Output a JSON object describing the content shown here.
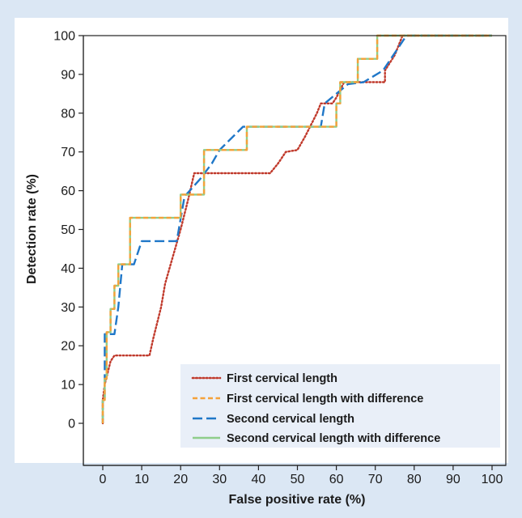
{
  "chart_data": {
    "type": "line",
    "title": "",
    "xlabel": "False positive rate (%)",
    "ylabel": "Detection rate (%)",
    "xlim": [
      0,
      100
    ],
    "ylim": [
      0,
      100
    ],
    "x_ticks": [
      0,
      10,
      20,
      30,
      40,
      50,
      60,
      70,
      80,
      90,
      100
    ],
    "y_ticks": [
      0,
      10,
      20,
      30,
      40,
      50,
      60,
      70,
      80,
      90,
      100
    ],
    "grid": false,
    "legend_position": "bottom-right",
    "series": [
      {
        "name": "First cervical length",
        "color": "#c0392b",
        "dash": "dotted",
        "points": [
          [
            0,
            0
          ],
          [
            0,
            6
          ],
          [
            0.5,
            10
          ],
          [
            1,
            12
          ],
          [
            2,
            16
          ],
          [
            3,
            17.5
          ],
          [
            12,
            17.5
          ],
          [
            13,
            22
          ],
          [
            15,
            30
          ],
          [
            16,
            36
          ],
          [
            18,
            43
          ],
          [
            20,
            50
          ],
          [
            22,
            58
          ],
          [
            23.5,
            64.5
          ],
          [
            43,
            64.5
          ],
          [
            45,
            67
          ],
          [
            47,
            70
          ],
          [
            50,
            70.5
          ],
          [
            52,
            74
          ],
          [
            55,
            80
          ],
          [
            56,
            82.5
          ],
          [
            59,
            82.5
          ],
          [
            60,
            84
          ],
          [
            61,
            86
          ],
          [
            62,
            88
          ],
          [
            72.5,
            88
          ],
          [
            72.5,
            91
          ],
          [
            75,
            95
          ],
          [
            77,
            100
          ],
          [
            100,
            100
          ]
        ]
      },
      {
        "name": "First cervical length with difference",
        "color": "#f5a13a",
        "dash": "dashed-short",
        "points": [
          [
            0,
            0
          ],
          [
            0,
            6
          ],
          [
            0.5,
            6
          ],
          [
            0.5,
            11.5
          ],
          [
            1,
            11.5
          ],
          [
            1,
            23.5
          ],
          [
            2,
            23.5
          ],
          [
            2,
            29.5
          ],
          [
            3,
            29.5
          ],
          [
            3,
            35.5
          ],
          [
            4,
            35.5
          ],
          [
            4,
            41
          ],
          [
            7,
            41
          ],
          [
            7,
            53
          ],
          [
            20,
            53
          ],
          [
            20,
            59
          ],
          [
            26,
            59
          ],
          [
            26,
            70.5
          ],
          [
            37,
            70.5
          ],
          [
            37,
            76.5
          ],
          [
            60,
            76.5
          ],
          [
            60,
            82.5
          ],
          [
            61,
            82.5
          ],
          [
            61,
            88
          ],
          [
            65.5,
            88
          ],
          [
            65.5,
            94
          ],
          [
            70.5,
            94
          ],
          [
            70.5,
            100
          ],
          [
            100,
            100
          ]
        ]
      },
      {
        "name": "Second cervical length",
        "color": "#1f77c8",
        "dash": "dashed-long",
        "points": [
          [
            0,
            0
          ],
          [
            0,
            6
          ],
          [
            0.5,
            6
          ],
          [
            0.5,
            23
          ],
          [
            3,
            23
          ],
          [
            4,
            30
          ],
          [
            5,
            41
          ],
          [
            8,
            41
          ],
          [
            10,
            47
          ],
          [
            19,
            47
          ],
          [
            21,
            58.5
          ],
          [
            25,
            63
          ],
          [
            28,
            67
          ],
          [
            30,
            70.5
          ],
          [
            36,
            76.5
          ],
          [
            56,
            76.5
          ],
          [
            57,
            82.5
          ],
          [
            63,
            87.5
          ],
          [
            67,
            88
          ],
          [
            72,
            91
          ],
          [
            78,
            100
          ],
          [
            100,
            100
          ]
        ]
      },
      {
        "name": "Second cervical length with difference",
        "color": "#8fce8a",
        "dash": "solid",
        "points": [
          [
            0,
            0
          ],
          [
            0,
            6
          ],
          [
            0.5,
            6
          ],
          [
            0.5,
            11.5
          ],
          [
            1,
            11.5
          ],
          [
            1,
            23.5
          ],
          [
            2,
            23.5
          ],
          [
            2,
            29.5
          ],
          [
            3,
            29.5
          ],
          [
            3,
            35.5
          ],
          [
            4,
            35.5
          ],
          [
            4,
            41
          ],
          [
            7,
            41
          ],
          [
            7,
            53
          ],
          [
            20,
            53
          ],
          [
            20,
            59
          ],
          [
            26,
            59
          ],
          [
            26,
            70.5
          ],
          [
            37,
            70.5
          ],
          [
            37,
            76.5
          ],
          [
            60,
            76.5
          ],
          [
            60,
            82.5
          ],
          [
            61,
            82.5
          ],
          [
            61,
            88
          ],
          [
            65.5,
            88
          ],
          [
            65.5,
            94
          ],
          [
            70.5,
            94
          ],
          [
            70.5,
            100
          ],
          [
            100,
            100
          ]
        ]
      }
    ]
  }
}
